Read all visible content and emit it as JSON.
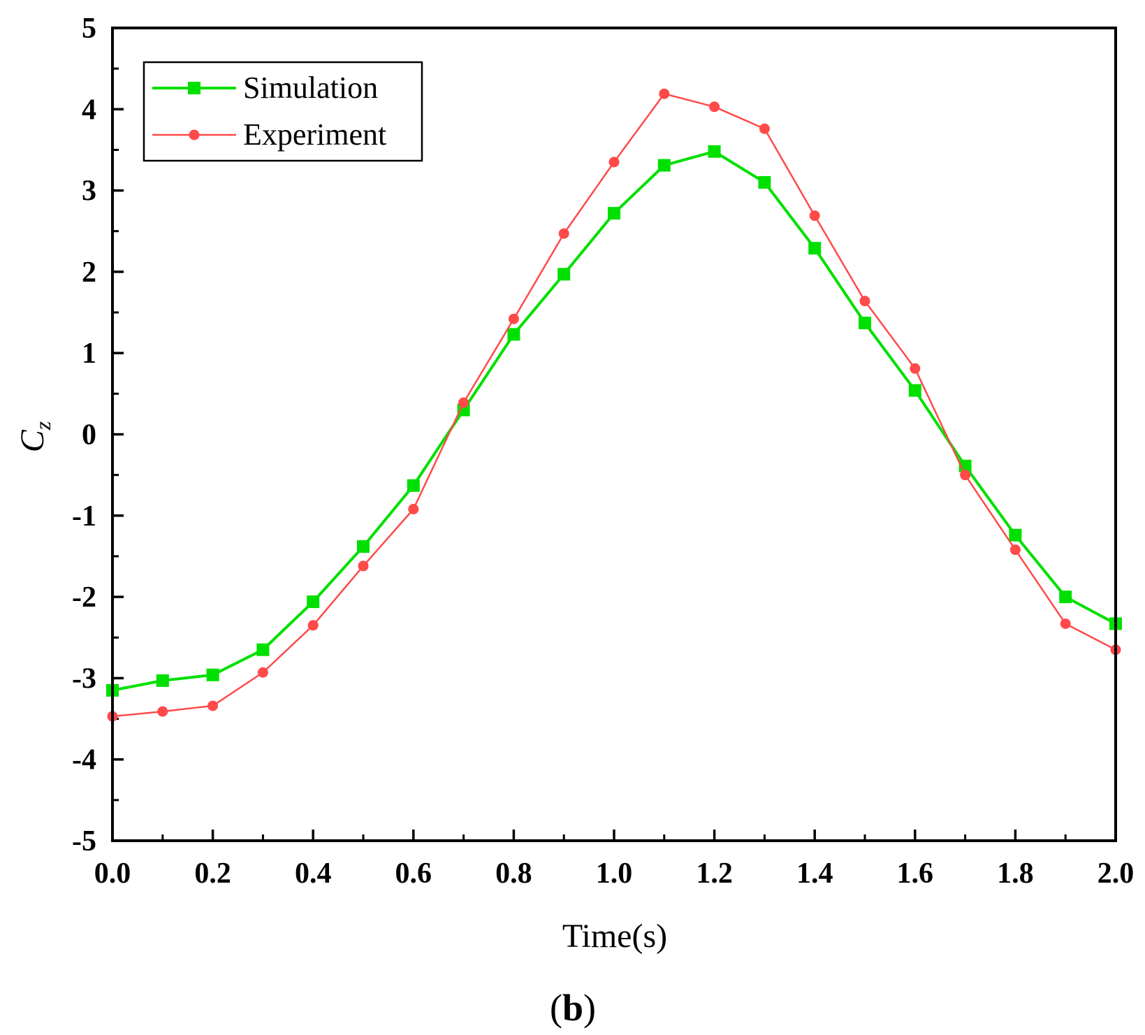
{
  "chart_data": {
    "type": "line",
    "xlabel": "Time(s)",
    "ylabel": "C",
    "ylabel_sub": "z",
    "panel_label_open": "(",
    "panel_label_letter": "b",
    "panel_label_close": ")",
    "xlim": [
      0.0,
      2.0
    ],
    "ylim": [
      -5,
      5
    ],
    "xticks": [
      0.0,
      0.2,
      0.4,
      0.6,
      0.8,
      1.0,
      1.2,
      1.4,
      1.6,
      1.8,
      2.0
    ],
    "xtick_labels": [
      "0.0",
      "0.2",
      "0.4",
      "0.6",
      "0.8",
      "1.0",
      "1.2",
      "1.4",
      "1.6",
      "1.8",
      "2.0"
    ],
    "yticks": [
      5,
      4,
      3,
      2,
      1,
      0,
      -1,
      -2,
      -3,
      -4,
      -5
    ],
    "ytick_labels": [
      "5",
      "4",
      "3",
      "2",
      "1",
      "0",
      "-1",
      "-2",
      "-3",
      "-4",
      "-5"
    ],
    "grid": false,
    "legend_position": "top-left",
    "x": [
      0.0,
      0.1,
      0.2,
      0.3,
      0.4,
      0.5,
      0.6,
      0.7,
      0.8,
      0.9,
      1.0,
      1.1,
      1.2,
      1.3,
      1.4,
      1.5,
      1.6,
      1.7,
      1.8,
      1.9,
      2.0
    ],
    "series": [
      {
        "name": "Simulation",
        "color": "#00e000",
        "marker": "square",
        "values": [
          -3.15,
          -3.03,
          -2.96,
          -2.65,
          -2.06,
          -1.38,
          -0.63,
          0.3,
          1.23,
          1.97,
          2.72,
          3.31,
          3.48,
          3.1,
          2.29,
          1.37,
          0.54,
          -0.39,
          -1.24,
          -2.0,
          -2.33
        ]
      },
      {
        "name": "Experiment",
        "color": "#ff4a4a",
        "marker": "circle",
        "values": [
          -3.47,
          -3.41,
          -3.34,
          -2.93,
          -2.35,
          -1.62,
          -0.92,
          0.39,
          1.42,
          2.47,
          3.35,
          4.19,
          4.03,
          3.76,
          2.69,
          1.64,
          0.81,
          -0.5,
          -1.42,
          -2.33,
          -2.65
        ]
      }
    ]
  }
}
